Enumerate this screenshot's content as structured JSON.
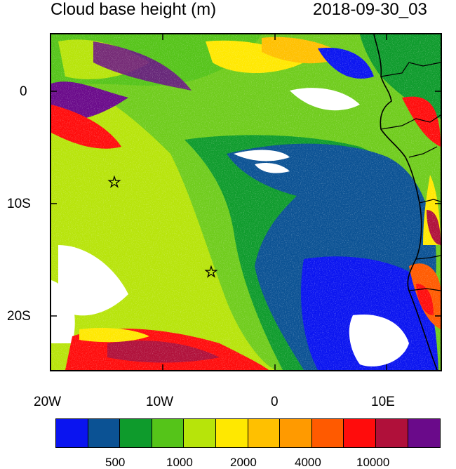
{
  "title_left": "Cloud base height (m)",
  "title_right": "2018-09-30_03",
  "map": {
    "x_ticks": [
      "20W",
      "10W",
      "0",
      "10E"
    ],
    "y_ticks": [
      "0",
      "10S",
      "20S"
    ],
    "markers": [
      "star",
      "star"
    ]
  },
  "colorbar": {
    "colors": [
      "#0a14f0",
      "#0b5294",
      "#0e9b2c",
      "#55c419",
      "#b7e40a",
      "#ffe800",
      "#ffc000",
      "#ff9a00",
      "#ff5a00",
      "#ff0c0c",
      "#b0103a",
      "#6a0a8a"
    ],
    "labels": [
      "500",
      "1000",
      "2000",
      "4000",
      "10000"
    ]
  }
}
